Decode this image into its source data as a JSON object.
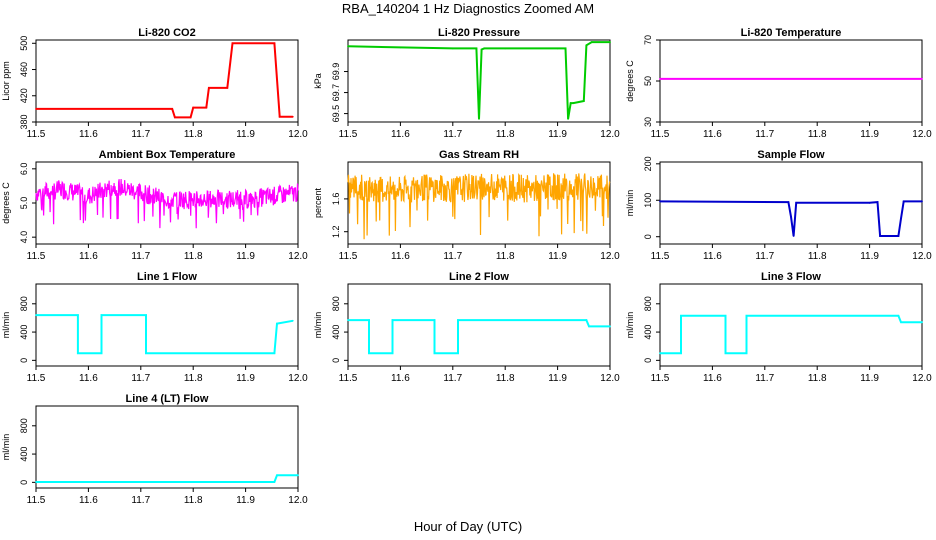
{
  "figure": {
    "title": "RBA_140204  1 Hz Diagnostics Zoomed AM",
    "xlabel": "Hour of Day (UTC)"
  },
  "chart_data": [
    {
      "type": "line",
      "title": "Li-820 CO2",
      "ylabel": "Licor ppm",
      "color": "#ff0000",
      "xlim": [
        11.5,
        12.0
      ],
      "ylim": [
        380,
        505
      ],
      "xticks": [
        "11.5",
        "11.6",
        "11.7",
        "11.8",
        "11.9",
        "12.0"
      ],
      "yticks": [
        "380",
        "420",
        "460",
        "500"
      ],
      "x": [
        11.5,
        11.76,
        11.765,
        11.795,
        11.8,
        11.825,
        11.83,
        11.865,
        11.875,
        11.955,
        11.965,
        11.99
      ],
      "y": [
        400,
        400,
        387,
        387,
        402,
        402,
        432,
        432,
        500,
        500,
        388,
        388
      ]
    },
    {
      "type": "line",
      "title": "Li-820 Pressure",
      "ylabel": "kPa",
      "color": "#00cc00",
      "xlim": [
        11.5,
        12.0
      ],
      "ylim": [
        69.42,
        70.2
      ],
      "xticks": [
        "11.5",
        "11.6",
        "11.7",
        "11.8",
        "11.9",
        "12.0"
      ],
      "yticks": [
        "69.5",
        "69.7",
        "69.9"
      ],
      "x": [
        11.5,
        11.6,
        11.7,
        11.745,
        11.75,
        11.755,
        11.76,
        11.8,
        11.9,
        11.915,
        11.92,
        11.925,
        11.93,
        11.95,
        11.955,
        11.965,
        12.0
      ],
      "y": [
        70.14,
        70.13,
        70.12,
        70.12,
        69.45,
        70.11,
        70.12,
        70.12,
        70.12,
        70.12,
        69.45,
        69.6,
        69.6,
        69.62,
        70.15,
        70.18,
        70.18
      ]
    },
    {
      "type": "line",
      "title": "Li-820 Temperature",
      "ylabel": "degrees C",
      "color": "#ff00ff",
      "xlim": [
        11.5,
        12.0
      ],
      "ylim": [
        30,
        70
      ],
      "xticks": [
        "11.5",
        "11.6",
        "11.7",
        "11.8",
        "11.9",
        "12.0"
      ],
      "yticks": [
        "30",
        "50",
        "70"
      ],
      "x": [
        11.5,
        12.0
      ],
      "y": [
        51,
        51
      ]
    },
    {
      "type": "line",
      "title": "Ambient Box Temperature",
      "ylabel": "degrees C",
      "color": "#ff00ff",
      "xlim": [
        11.5,
        12.0
      ],
      "ylim": [
        3.8,
        6.2
      ],
      "xticks": [
        "11.5",
        "11.6",
        "11.7",
        "11.8",
        "11.9",
        "12.0"
      ],
      "yticks": [
        "4.0",
        "5.0",
        "6.0"
      ],
      "x": [
        11.5,
        11.55,
        11.6,
        11.65,
        11.7,
        11.75,
        11.8,
        11.85,
        11.9,
        11.95,
        12.0
      ],
      "y": [
        5.3,
        5.4,
        5.2,
        5.5,
        5.3,
        5.1,
        5.1,
        5.1,
        5.1,
        5.2,
        5.3
      ]
    },
    {
      "type": "line",
      "title": "Gas Stream RH",
      "ylabel": "percent",
      "color": "#ffa500",
      "xlim": [
        11.5,
        12.0
      ],
      "ylim": [
        1.05,
        2.05
      ],
      "xticks": [
        "11.5",
        "11.6",
        "11.7",
        "11.8",
        "11.9",
        "12.0"
      ],
      "yticks": [
        "1.2",
        "1.6"
      ],
      "x": [
        11.5,
        11.55,
        11.6,
        11.65,
        11.7,
        11.75,
        11.8,
        11.85,
        11.9,
        11.95,
        12.0
      ],
      "y": [
        1.75,
        1.72,
        1.7,
        1.74,
        1.72,
        1.75,
        1.74,
        1.72,
        1.75,
        1.74,
        1.73
      ]
    },
    {
      "type": "line",
      "title": "Sample Flow",
      "ylabel": "ml/min",
      "color": "#0000cc",
      "xlim": [
        11.5,
        12.0
      ],
      "ylim": [
        -20,
        205
      ],
      "xticks": [
        "11.5",
        "11.6",
        "11.7",
        "11.8",
        "11.9",
        "12.0"
      ],
      "yticks": [
        "0",
        "100",
        "200"
      ],
      "x": [
        11.5,
        11.745,
        11.75,
        11.755,
        11.76,
        11.9,
        11.915,
        11.92,
        11.955,
        11.96,
        11.965,
        12.0
      ],
      "y": [
        97,
        95,
        55,
        2,
        93,
        93,
        95,
        2,
        2,
        50,
        97,
        97
      ]
    },
    {
      "type": "line",
      "title": "Line 1 Flow",
      "ylabel": "ml/min",
      "color": "#00ffff",
      "xlim": [
        11.5,
        12.0
      ],
      "ylim": [
        -80,
        1080
      ],
      "xticks": [
        "11.5",
        "11.6",
        "11.7",
        "11.8",
        "11.9",
        "12.0"
      ],
      "yticks": [
        "0",
        "400",
        "800"
      ],
      "x": [
        11.5,
        11.58,
        11.58,
        11.625,
        11.625,
        11.71,
        11.71,
        11.955,
        11.96,
        11.99
      ],
      "y": [
        640,
        640,
        100,
        100,
        640,
        640,
        100,
        100,
        520,
        560
      ]
    },
    {
      "type": "line",
      "title": "Line 2 Flow",
      "ylabel": "ml/min",
      "color": "#00ffff",
      "xlim": [
        11.5,
        12.0
      ],
      "ylim": [
        -80,
        1080
      ],
      "xticks": [
        "11.5",
        "11.6",
        "11.7",
        "11.8",
        "11.9",
        "12.0"
      ],
      "yticks": [
        "0",
        "400",
        "800"
      ],
      "x": [
        11.5,
        11.54,
        11.54,
        11.585,
        11.585,
        11.665,
        11.665,
        11.71,
        11.71,
        11.955,
        11.96,
        12.0
      ],
      "y": [
        570,
        570,
        100,
        100,
        570,
        570,
        100,
        100,
        570,
        570,
        480,
        480
      ]
    },
    {
      "type": "line",
      "title": "Line 3 Flow",
      "ylabel": "ml/min",
      "color": "#00ffff",
      "xlim": [
        11.5,
        12.0
      ],
      "ylim": [
        -80,
        1080
      ],
      "xticks": [
        "11.5",
        "11.6",
        "11.7",
        "11.8",
        "11.9",
        "12.0"
      ],
      "yticks": [
        "0",
        "400",
        "800"
      ],
      "x": [
        11.5,
        11.54,
        11.54,
        11.625,
        11.625,
        11.665,
        11.665,
        11.955,
        11.96,
        12.0
      ],
      "y": [
        100,
        100,
        630,
        630,
        100,
        100,
        630,
        630,
        540,
        540
      ]
    },
    {
      "type": "line",
      "title": "Line 4 (LT) Flow",
      "ylabel": "ml/min",
      "color": "#00ffff",
      "xlim": [
        11.5,
        12.0
      ],
      "ylim": [
        -80,
        1080
      ],
      "xticks": [
        "11.5",
        "11.6",
        "11.7",
        "11.8",
        "11.9",
        "12.0"
      ],
      "yticks": [
        "0",
        "400",
        "800"
      ],
      "x": [
        11.5,
        11.955,
        11.96,
        12.0
      ],
      "y": [
        5,
        5,
        100,
        100
      ]
    }
  ]
}
